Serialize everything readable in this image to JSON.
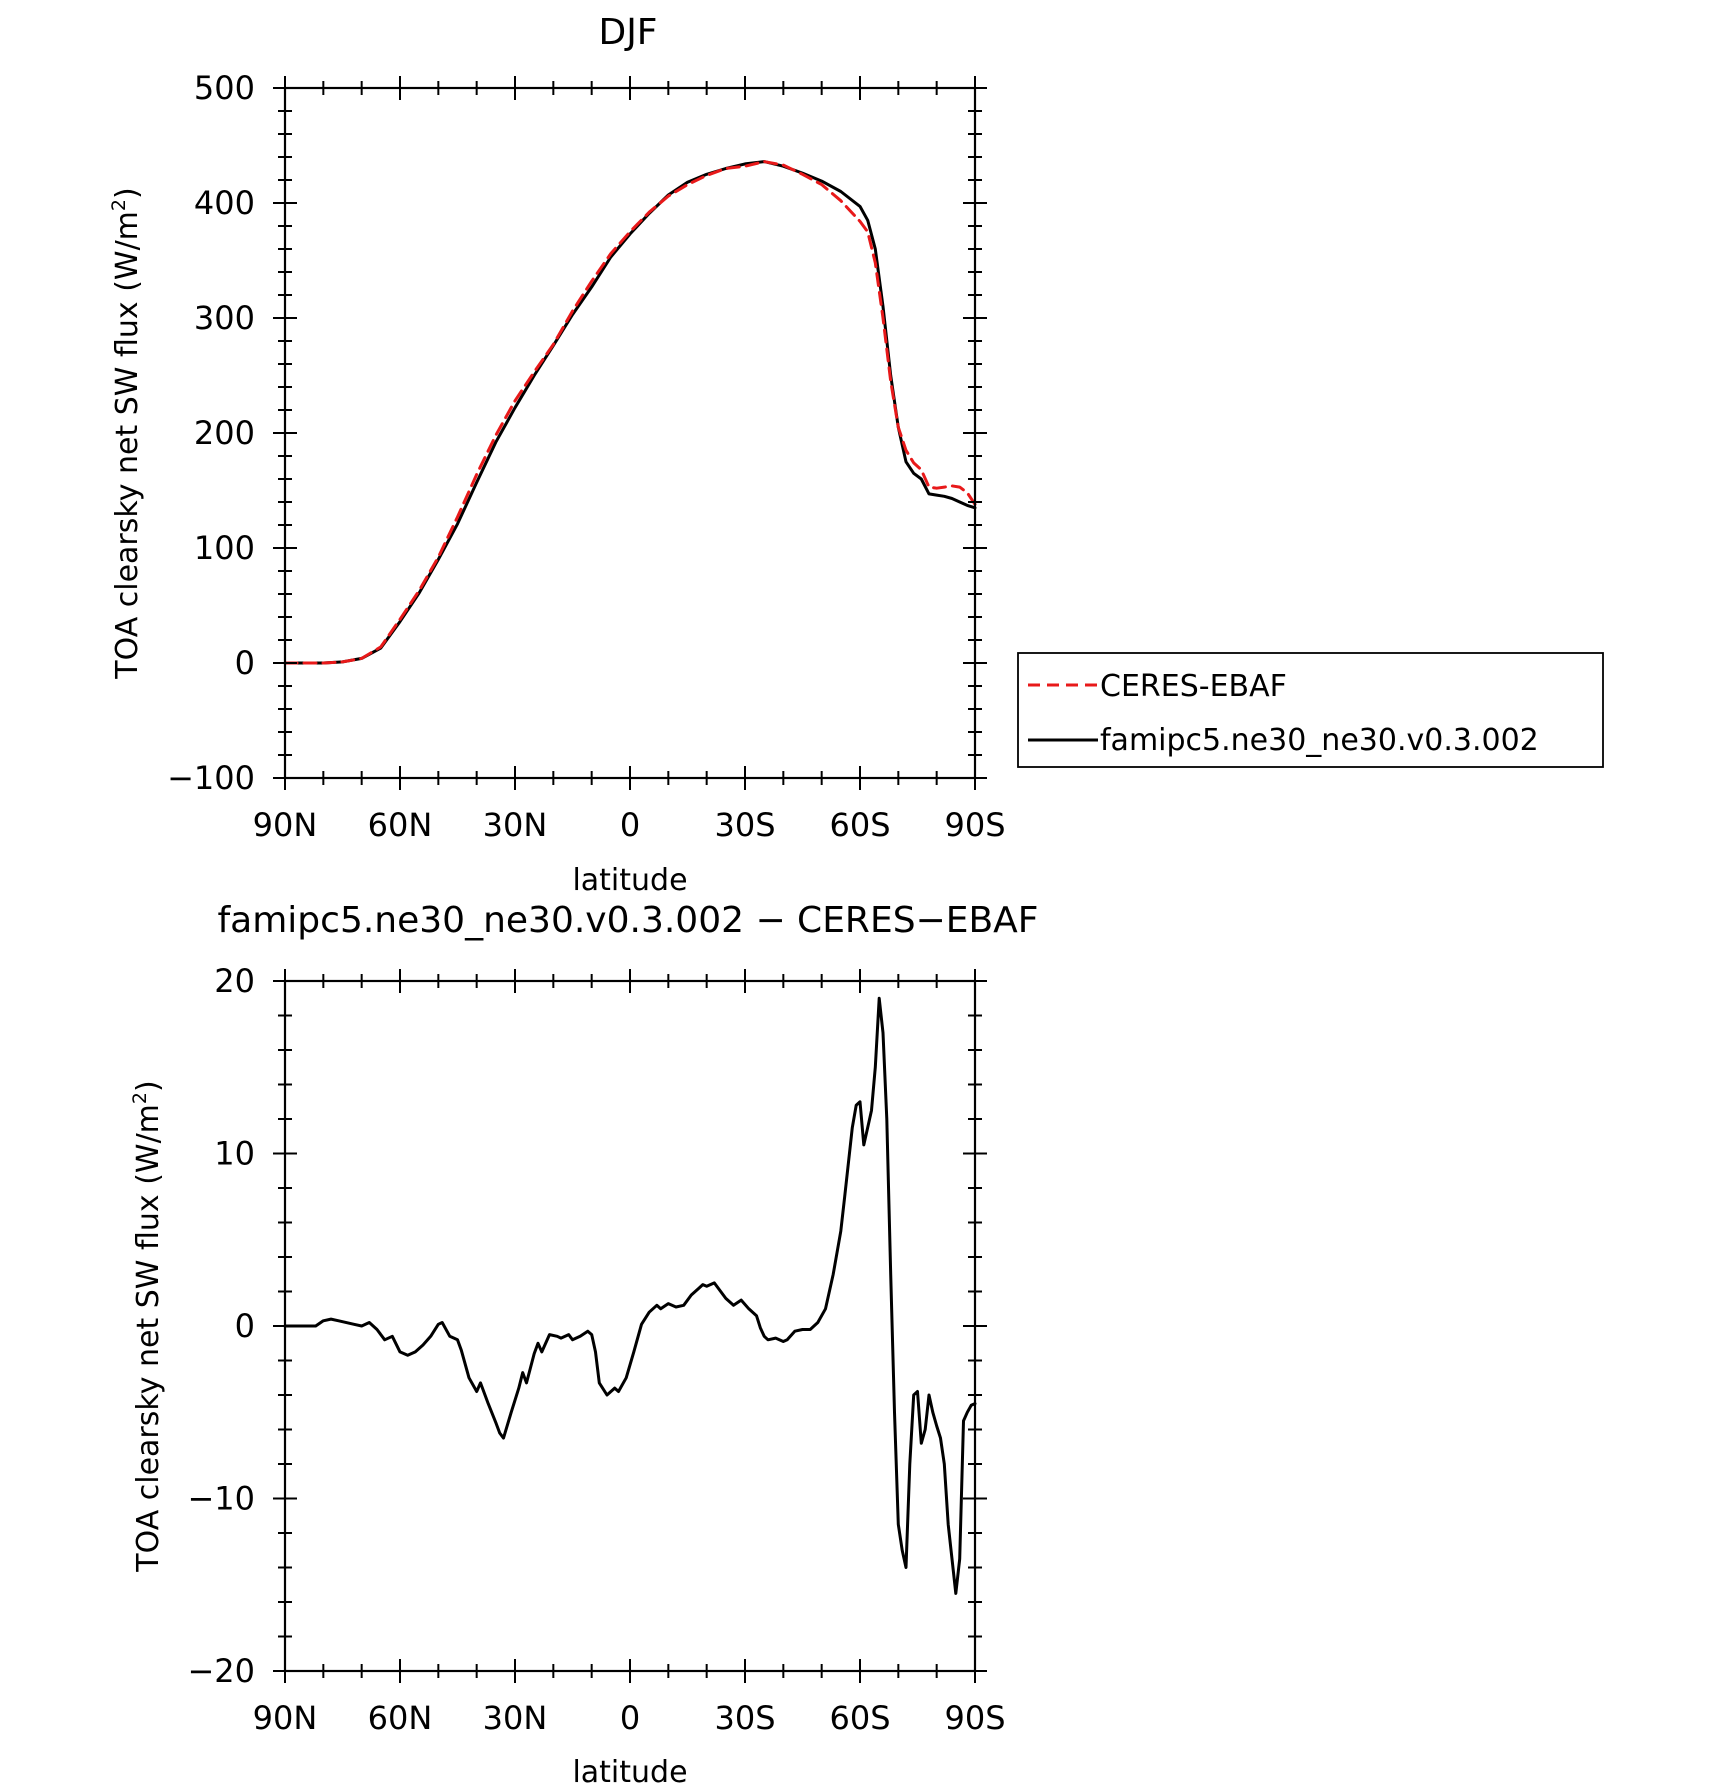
{
  "chart_data": [
    {
      "type": "line",
      "title": "DJF",
      "xlabel": "latitude",
      "ylabel": "TOA clearsky net SW flux (W/m²)",
      "ylabel_base": "TOA clearsky net SW flux (W/m",
      "ylabel_sup": "2",
      "ylabel_end": ")",
      "x_tick_labels": [
        "90N",
        "60N",
        "30N",
        "0",
        "30S",
        "60S",
        "90S"
      ],
      "y_tick_labels": [
        "−100",
        "0",
        "100",
        "200",
        "300",
        "400",
        "500"
      ],
      "xlim": [
        90,
        -90
      ],
      "ylim": [
        -100,
        500
      ],
      "legend_position": "right",
      "x": [
        90,
        85,
        80,
        75,
        70,
        65,
        60,
        55,
        50,
        45,
        40,
        35,
        30,
        25,
        20,
        15,
        10,
        5,
        0,
        -5,
        -10,
        -15,
        -20,
        -25,
        -30,
        -35,
        -40,
        -45,
        -50,
        -55,
        -60,
        -62,
        -64,
        -66,
        -68,
        -70,
        -72,
        -74,
        -76,
        -78,
        -80,
        -82,
        -84,
        -86,
        -88,
        -90
      ],
      "series": [
        {
          "name": "CERES-EBAF",
          "color": "#e8191a",
          "dash": "dashed",
          "values": [
            0,
            0,
            0,
            1,
            4,
            14,
            38,
            63,
            92,
            127,
            164,
            198,
            228,
            253,
            277,
            306,
            332,
            356,
            375,
            392,
            406,
            416,
            424,
            430,
            432,
            436,
            433,
            425,
            416,
            402,
            384,
            375,
            348,
            300,
            245,
            205,
            185,
            174,
            168,
            153,
            152,
            153,
            154,
            153,
            148,
            138
          ]
        },
        {
          "name": "famipc5.ne30_ne30.v0.3.002",
          "color": "#000000",
          "dash": "solid",
          "values": [
            0,
            0,
            0,
            1,
            4,
            13,
            36,
            61,
            90,
            121,
            157,
            192,
            222,
            250,
            276,
            303,
            327,
            353,
            373,
            391,
            407,
            418,
            425,
            430,
            434,
            436,
            432,
            426,
            419,
            410,
            397,
            385,
            360,
            310,
            250,
            205,
            175,
            165,
            160,
            147,
            146,
            145,
            143,
            140,
            137,
            135
          ]
        }
      ]
    },
    {
      "type": "line",
      "title": "famipc5.ne30_ne30.v0.3.002 − CERES−EBAF",
      "xlabel": "latitude",
      "ylabel": "TOA clearsky net SW flux (W/m²)",
      "ylabel_base": "TOA clearsky net SW flux (W/m",
      "ylabel_sup": "2",
      "ylabel_end": ")",
      "x_tick_labels": [
        "90N",
        "60N",
        "30N",
        "0",
        "30S",
        "60S",
        "90S"
      ],
      "y_tick_labels": [
        "−20",
        "−10",
        "0",
        "10",
        "20"
      ],
      "xlim": [
        90,
        -90
      ],
      "ylim": [
        -20,
        20
      ],
      "x": [
        90,
        86,
        82,
        80,
        78,
        76,
        72,
        70,
        68,
        66,
        64,
        62,
        60,
        58,
        56,
        54,
        52,
        50,
        49,
        47,
        45,
        44,
        42,
        40,
        39,
        37,
        35,
        34,
        33,
        31,
        29,
        28,
        27,
        25,
        24,
        23,
        21,
        19,
        18,
        16,
        15,
        13,
        11,
        10,
        9,
        8,
        6,
        4,
        3,
        1,
        -1,
        -3,
        -5,
        -7,
        -8,
        -10,
        -12,
        -14,
        -16,
        -18,
        -19,
        -20,
        -22,
        -23,
        -25,
        -27,
        -29,
        -31,
        -33,
        -34,
        -35,
        -36,
        -38,
        -40,
        -41,
        -43,
        -45,
        -47,
        -49,
        -51,
        -53,
        -55,
        -56,
        -57,
        -58,
        -59,
        -60,
        -61,
        -62,
        -63,
        -64,
        -65,
        -66,
        -67,
        -68,
        -69,
        -70,
        -71,
        -72,
        -73,
        -74,
        -75,
        -76,
        -77,
        -78,
        -79,
        -80,
        -81,
        -82,
        -83,
        -84,
        -85,
        -86,
        -87,
        -88,
        -89,
        -90
      ],
      "series": [
        {
          "name": "famipc5.ne30_ne30.v0.3.002 − CERES−EBAF",
          "color": "#000000",
          "dash": "solid",
          "values": [
            0,
            0,
            0,
            0.3,
            0.4,
            0.3,
            0.1,
            0,
            0.2,
            -0.2,
            -0.8,
            -0.6,
            -1.5,
            -1.7,
            -1.5,
            -1.1,
            -0.6,
            0.1,
            0.2,
            -0.6,
            -0.8,
            -1.4,
            -3.0,
            -3.8,
            -3.3,
            -4.5,
            -5.6,
            -6.2,
            -6.5,
            -5.0,
            -3.6,
            -2.7,
            -3.3,
            -1.6,
            -1.0,
            -1.5,
            -0.5,
            -0.6,
            -0.7,
            -0.5,
            -0.8,
            -0.6,
            -0.3,
            -0.5,
            -1.5,
            -3.3,
            -4.0,
            -3.6,
            -3.8,
            -3.0,
            -1.5,
            0.1,
            0.8,
            1.2,
            1.0,
            1.3,
            1.1,
            1.2,
            1.8,
            2.2,
            2.4,
            2.3,
            2.5,
            2.2,
            1.6,
            1.2,
            1.5,
            1.0,
            0.6,
            -0.1,
            -0.6,
            -0.8,
            -0.7,
            -0.9,
            -0.8,
            -0.3,
            -0.2,
            -0.2,
            0.2,
            1.0,
            3.0,
            5.5,
            7.5,
            9.5,
            11.5,
            12.8,
            13.0,
            10.5,
            11.5,
            12.5,
            15.0,
            19.0,
            17.0,
            12.0,
            3.0,
            -5.0,
            -11.5,
            -13.0,
            -14.0,
            -8.0,
            -4.0,
            -3.8,
            -6.8,
            -6.0,
            -4.0,
            -5.0,
            -5.8,
            -6.5,
            -8.0,
            -11.5,
            -13.5,
            -15.5,
            -13.5,
            -5.5,
            -5.0,
            -4.6,
            -4.5
          ]
        }
      ]
    }
  ]
}
